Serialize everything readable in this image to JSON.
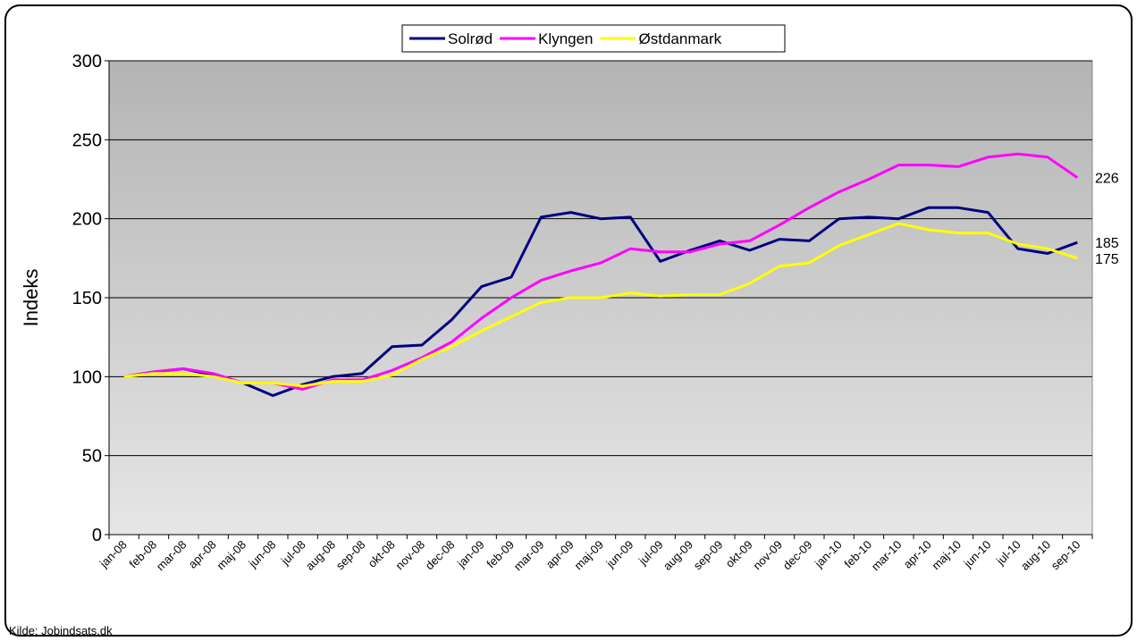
{
  "chart_data": {
    "type": "line",
    "y_label": "Indeks",
    "source": "Kilde: Jobindsats.dk",
    "categories": [
      "jan-08",
      "feb-08",
      "mar-08",
      "apr-08",
      "maj-08",
      "jun-08",
      "jul-08",
      "aug-08",
      "sep-08",
      "okt-08",
      "nov-08",
      "dec-08",
      "jan-09",
      "feb-09",
      "mar-09",
      "apr-09",
      "maj-09",
      "jun-09",
      "jul-09",
      "aug-09",
      "sep-09",
      "okt-09",
      "nov-09",
      "dec-09",
      "jan-10",
      "feb-10",
      "mar-10",
      "apr-10",
      "maj-10",
      "jun-10",
      "jul-10",
      "aug-10",
      "sep-10"
    ],
    "series": [
      {
        "name": "Solrød",
        "color": "#000080",
        "values": [
          100,
          103,
          105,
          101,
          96,
          88,
          95,
          100,
          102,
          119,
          120,
          136,
          157,
          163,
          201,
          204,
          200,
          201,
          173,
          180,
          186,
          180,
          187,
          186,
          200,
          201,
          200,
          207,
          207,
          204,
          181,
          178,
          185
        ]
      },
      {
        "name": "Klyngen",
        "color": "#ff00ff",
        "values": [
          100,
          103,
          105,
          102,
          96,
          96,
          92,
          98,
          98,
          104,
          112,
          122,
          137,
          150,
          161,
          167,
          172,
          181,
          179,
          179,
          184,
          186,
          196,
          207,
          217,
          225,
          234,
          234,
          233,
          239,
          241,
          239,
          226
        ]
      },
      {
        "name": "Østdanmark",
        "color": "#ffff00",
        "values": [
          100,
          102,
          102,
          100,
          96,
          96,
          94,
          97,
          97,
          101,
          111,
          119,
          129,
          138,
          147,
          150,
          150,
          153,
          151,
          152,
          152,
          159,
          170,
          172,
          183,
          190,
          197,
          193,
          191,
          191,
          184,
          181,
          175
        ]
      }
    ],
    "ylim": [
      0,
      300
    ],
    "yticks": [
      0,
      50,
      100,
      150,
      200,
      250,
      300
    ],
    "grid": true,
    "legend": "top"
  }
}
